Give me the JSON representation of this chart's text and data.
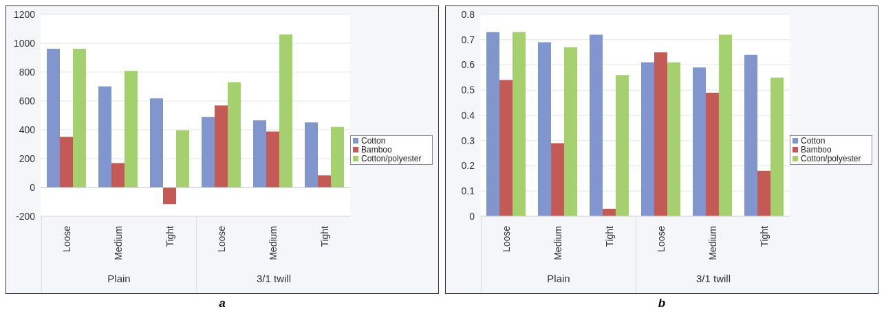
{
  "chart_data": [
    {
      "type": "bar",
      "categories": [
        "Loose",
        "Medium",
        "Tight",
        "Loose",
        "Medium",
        "Tight"
      ],
      "series": [
        {
          "name": "Cotton",
          "color": "#8096cc",
          "values": [
            962,
            701,
            618,
            489,
            466,
            451
          ]
        },
        {
          "name": "Bamboo",
          "color": "#c45a55",
          "values": [
            351,
            169,
            -115,
            569,
            388,
            84
          ]
        },
        {
          "name": "Cotton/polyester",
          "color": "#a5d06e",
          "values": [
            962,
            808,
            397,
            730,
            1061,
            420
          ]
        }
      ],
      "ylim": [
        -200,
        1200
      ],
      "yticks": [
        -200,
        0,
        200,
        400,
        600,
        800,
        1000,
        1200
      ],
      "grid": "y",
      "legend": "right",
      "annotations": [
        "Plain",
        "3/1 twill",
        "a"
      ]
    },
    {
      "type": "bar",
      "categories": [
        "Loose",
        "Medium",
        "Tight",
        "Loose",
        "Medium",
        "Tight"
      ],
      "series": [
        {
          "name": "Cotton",
          "color": "#8096cc",
          "values": [
            0.73,
            0.69,
            0.72,
            0.61,
            0.59,
            0.64
          ]
        },
        {
          "name": "Bamboo",
          "color": "#c45a55",
          "values": [
            0.54,
            0.29,
            0.03,
            0.65,
            0.49,
            0.18
          ]
        },
        {
          "name": "Cotton/polyester",
          "color": "#a5d06e",
          "values": [
            0.73,
            0.67,
            0.56,
            0.61,
            0.72,
            0.55
          ]
        }
      ],
      "ylim": [
        0,
        0.8
      ],
      "yticks": [
        0,
        0.1,
        0.2,
        0.3,
        0.4,
        0.5,
        0.6,
        0.7,
        0.8
      ],
      "grid": "y",
      "legend": "right",
      "annotations": [
        "Plain",
        "3/1 twill",
        "b"
      ]
    }
  ]
}
